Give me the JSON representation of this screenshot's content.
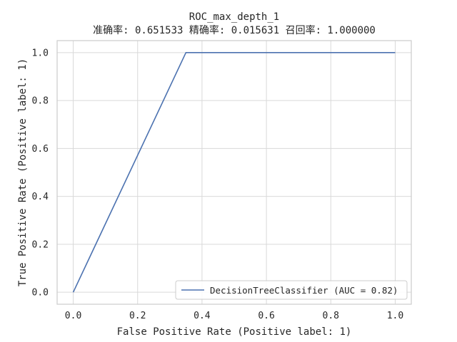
{
  "chart_data": {
    "type": "line",
    "title": "ROC_max_depth_1",
    "subtitle": "准确率: 0.651533 精确率: 0.015631 召回率: 1.000000",
    "xlabel": "False Positive Rate (Positive label: 1)",
    "ylabel": "True Positive Rate (Positive label: 1)",
    "xlim": [
      -0.05,
      1.05
    ],
    "ylim": [
      -0.05,
      1.05
    ],
    "xticks": [
      0.0,
      0.2,
      0.4,
      0.6,
      0.8,
      1.0
    ],
    "xtick_labels": [
      "0.0",
      "0.2",
      "0.4",
      "0.6",
      "0.8",
      "1.0"
    ],
    "yticks": [
      0.0,
      0.2,
      0.4,
      0.6,
      0.8,
      1.0
    ],
    "ytick_labels": [
      "0.0",
      "0.2",
      "0.4",
      "0.6",
      "0.8",
      "1.0"
    ],
    "grid": true,
    "legend_position": "lower-right",
    "series": [
      {
        "name": "DecisionTreeClassifier (AUC = 0.82)",
        "color": "#4c72b0",
        "x": [
          0.0,
          0.35,
          1.0
        ],
        "y": [
          0.0,
          1.0,
          1.0
        ]
      }
    ]
  }
}
